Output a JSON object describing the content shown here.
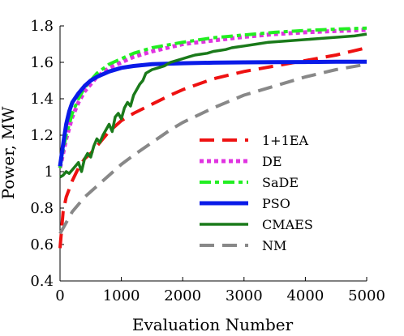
{
  "chart_data": {
    "type": "line",
    "xlabel": "Evaluation Number",
    "ylabel": "Power, MW",
    "xlim": [
      0,
      5000
    ],
    "ylim": [
      0.4,
      1.8
    ],
    "x_ticks": [
      "0",
      "1000",
      "2000",
      "3000",
      "4000",
      "5000"
    ],
    "y_ticks": [
      "0.4",
      "0.6",
      "0.8",
      "1",
      "1.2",
      "1.4",
      "1.6",
      "1.8"
    ],
    "grid": false,
    "legend_position": "center-right",
    "series": [
      {
        "name": "1+1EA",
        "color": "#ee1111",
        "style": "long-dash",
        "x": [
          0,
          50,
          100,
          200,
          300,
          400,
          500,
          600,
          700,
          800,
          1000,
          1200,
          1500,
          1800,
          2000,
          2500,
          3000,
          3500,
          4000,
          4500,
          5000
        ],
        "y": [
          0.58,
          0.78,
          0.86,
          0.95,
          1.02,
          1.07,
          1.1,
          1.14,
          1.18,
          1.22,
          1.28,
          1.32,
          1.37,
          1.42,
          1.45,
          1.51,
          1.55,
          1.58,
          1.61,
          1.64,
          1.68
        ]
      },
      {
        "name": "DE",
        "color": "#e033e0",
        "style": "dotted",
        "x": [
          0,
          50,
          100,
          200,
          300,
          400,
          500,
          600,
          800,
          1000,
          1200,
          1500,
          2000,
          2500,
          3000,
          3500,
          4000,
          4500,
          5000
        ],
        "y": [
          1.02,
          1.1,
          1.18,
          1.3,
          1.38,
          1.44,
          1.48,
          1.52,
          1.57,
          1.6,
          1.63,
          1.66,
          1.7,
          1.72,
          1.74,
          1.755,
          1.765,
          1.772,
          1.778
        ]
      },
      {
        "name": "SaDE",
        "color": "#22ee22",
        "style": "dash-dot",
        "x": [
          0,
          50,
          100,
          200,
          300,
          400,
          500,
          600,
          800,
          1000,
          1200,
          1500,
          2000,
          2500,
          3000,
          3500,
          4000,
          4500,
          5000
        ],
        "y": [
          1.02,
          1.12,
          1.2,
          1.32,
          1.4,
          1.46,
          1.5,
          1.54,
          1.59,
          1.62,
          1.65,
          1.68,
          1.71,
          1.735,
          1.75,
          1.765,
          1.775,
          1.782,
          1.788
        ]
      },
      {
        "name": "PSO",
        "color": "#0a1be8",
        "style": "solid-thick",
        "x": [
          0,
          50,
          100,
          150,
          200,
          300,
          400,
          500,
          600,
          800,
          1000,
          1200,
          1500,
          2000,
          2500,
          3000,
          3500,
          4000,
          4500,
          5000
        ],
        "y": [
          1.03,
          1.15,
          1.26,
          1.33,
          1.38,
          1.43,
          1.47,
          1.5,
          1.52,
          1.55,
          1.57,
          1.58,
          1.59,
          1.595,
          1.598,
          1.6,
          1.601,
          1.602,
          1.603,
          1.603
        ]
      },
      {
        "name": "CMAES",
        "color": "#1a7a1a",
        "style": "solid-noisy",
        "x": [
          0,
          50,
          100,
          150,
          200,
          250,
          300,
          350,
          400,
          450,
          500,
          550,
          600,
          650,
          700,
          750,
          800,
          850,
          900,
          950,
          1000,
          1050,
          1100,
          1150,
          1200,
          1250,
          1300,
          1350,
          1400,
          1500,
          1600,
          1700,
          1800,
          1900,
          2000,
          2100,
          2200,
          2300,
          2400,
          2500,
          2600,
          2700,
          2800,
          2900,
          3000,
          3200,
          3400,
          3600,
          3800,
          4000,
          4200,
          4400,
          4600,
          4800,
          5000
        ],
        "y": [
          0.97,
          0.98,
          1.0,
          0.99,
          1.01,
          1.03,
          1.05,
          1.0,
          1.07,
          1.1,
          1.08,
          1.14,
          1.18,
          1.16,
          1.2,
          1.23,
          1.26,
          1.22,
          1.3,
          1.32,
          1.29,
          1.35,
          1.38,
          1.36,
          1.42,
          1.45,
          1.48,
          1.5,
          1.54,
          1.56,
          1.57,
          1.58,
          1.6,
          1.61,
          1.62,
          1.63,
          1.64,
          1.645,
          1.65,
          1.66,
          1.665,
          1.67,
          1.68,
          1.685,
          1.69,
          1.7,
          1.71,
          1.715,
          1.72,
          1.725,
          1.73,
          1.735,
          1.74,
          1.745,
          1.755
        ]
      },
      {
        "name": "NM",
        "color": "#888888",
        "style": "long-dash",
        "x": [
          0,
          100,
          200,
          300,
          400,
          500,
          600,
          700,
          800,
          1000,
          1200,
          1500,
          1800,
          2000,
          2500,
          3000,
          3500,
          4000,
          4500,
          5000
        ],
        "y": [
          0.66,
          0.72,
          0.78,
          0.82,
          0.86,
          0.89,
          0.92,
          0.95,
          0.98,
          1.04,
          1.09,
          1.16,
          1.23,
          1.27,
          1.35,
          1.42,
          1.47,
          1.52,
          1.56,
          1.59
        ]
      }
    ]
  }
}
